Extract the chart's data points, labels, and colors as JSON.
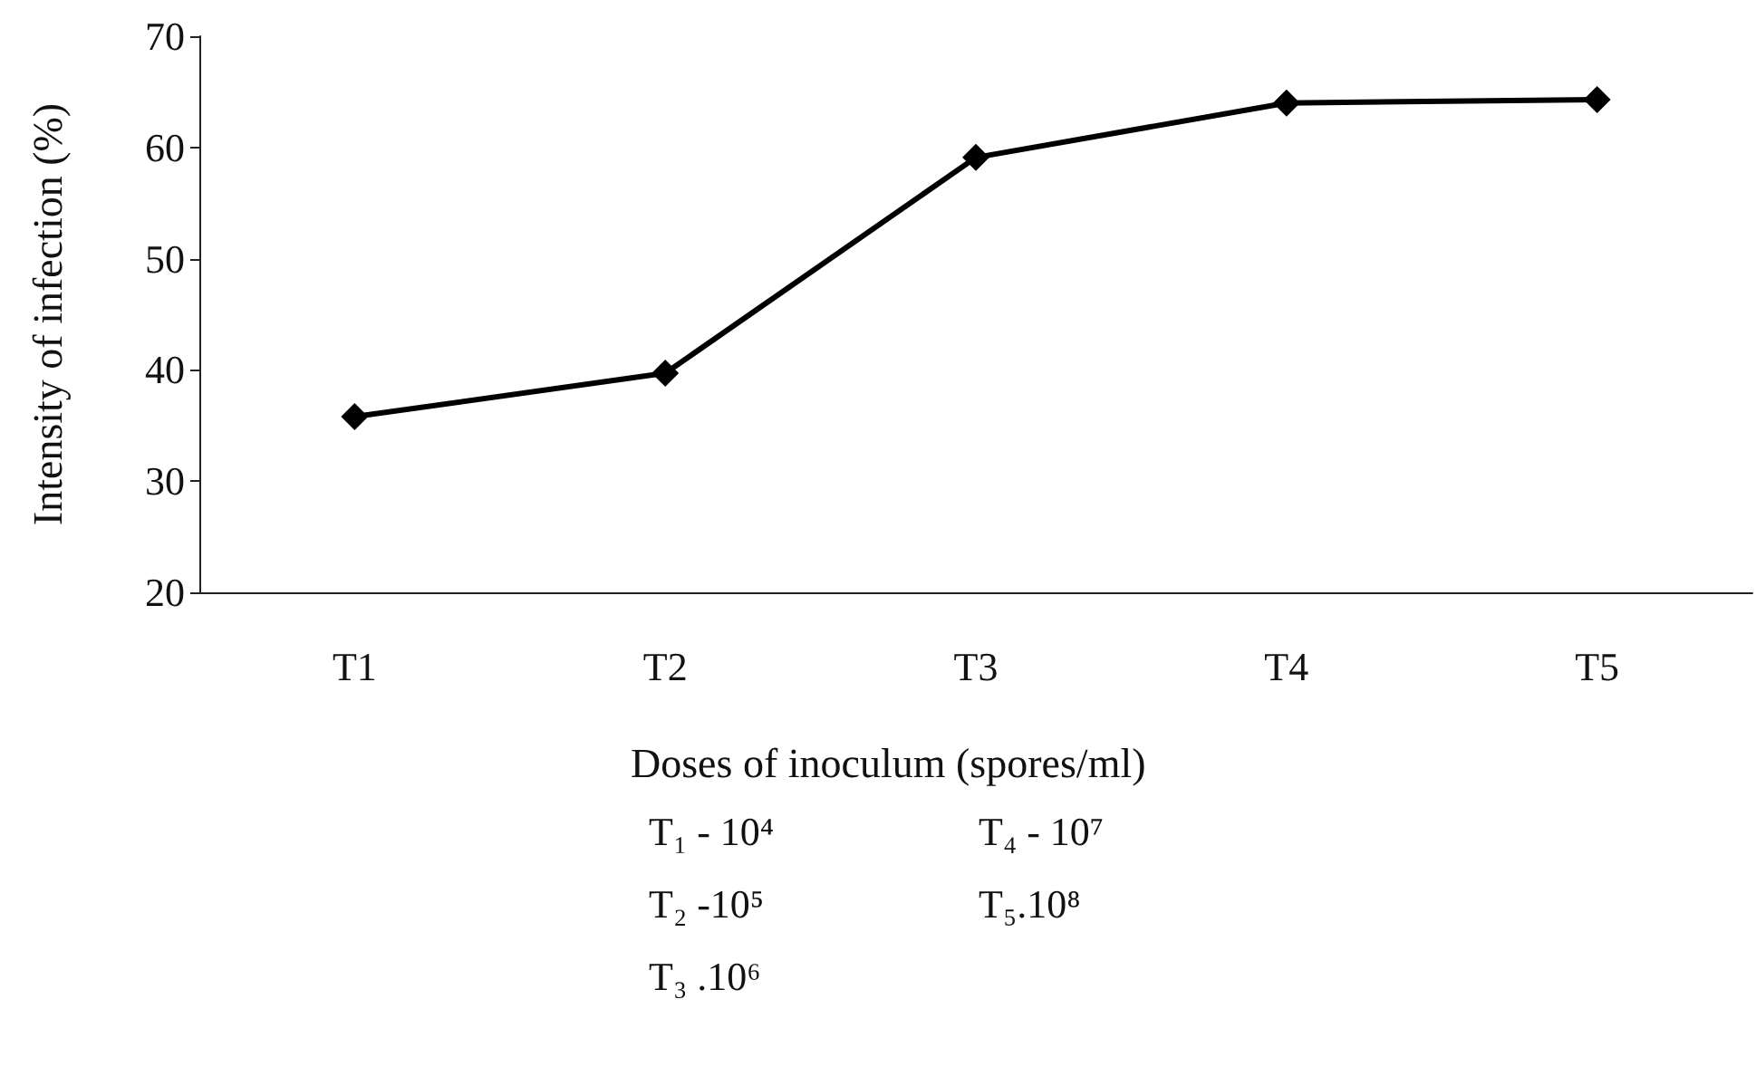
{
  "chart_data": {
    "type": "line",
    "xlabel": "Doses of inoculum (spores/ml)",
    "ylabel": "Intensity of infection (%)",
    "categories": [
      "T1",
      "T2",
      "T3",
      "T4",
      "T5"
    ],
    "series": [
      {
        "color": "#000000",
        "values": [
          35.8,
          39.7,
          59.1,
          64,
          64.3
        ]
      }
    ],
    "ylim": [
      20,
      70
    ],
    "yticks": [
      20,
      30,
      40,
      50,
      60,
      70
    ],
    "grid": false,
    "marker": "diamond",
    "line_style": "solid",
    "annotations": [
      "T₁ - 10⁴",
      "T₂ -10⁵",
      "T₃ .10⁶",
      "T₄ - 10⁷",
      "T₅.10⁸"
    ]
  }
}
